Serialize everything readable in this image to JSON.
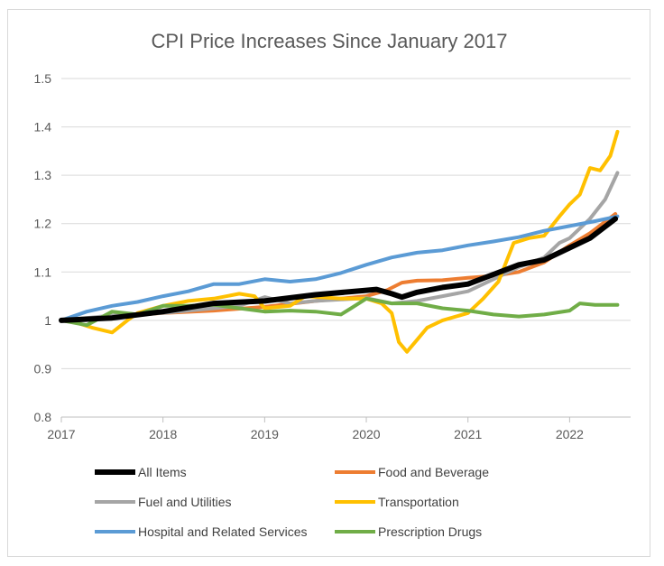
{
  "chart_data": {
    "type": "line",
    "title": "CPI Price Increases Since January 2017",
    "xlabel": "",
    "ylabel": "",
    "xlim": [
      2017,
      2022.6
    ],
    "ylim": [
      0.8,
      1.5
    ],
    "x_ticks": [
      2017,
      2018,
      2019,
      2020,
      2021,
      2022
    ],
    "x_tick_labels": [
      "2017",
      "2018",
      "2019",
      "2020",
      "2021",
      "2022"
    ],
    "y_ticks": [
      0.8,
      0.9,
      1.0,
      1.1,
      1.2,
      1.3,
      1.4,
      1.5
    ],
    "y_tick_labels": [
      "0.8",
      "0.9",
      "1",
      "1.1",
      "1.2",
      "1.3",
      "1.4",
      "1.5"
    ],
    "grid": true,
    "legend_position": "bottom",
    "series": [
      {
        "name": "All Items",
        "color": "#000000",
        "points": [
          [
            2017,
            1.0
          ],
          [
            2017.5,
            1.005
          ],
          [
            2018,
            1.018
          ],
          [
            2018.5,
            1.035
          ],
          [
            2019,
            1.04
          ],
          [
            2019.5,
            1.053
          ],
          [
            2020,
            1.062
          ],
          [
            2020.1,
            1.064
          ],
          [
            2020.25,
            1.055
          ],
          [
            2020.35,
            1.048
          ],
          [
            2020.5,
            1.058
          ],
          [
            2020.75,
            1.068
          ],
          [
            2021,
            1.075
          ],
          [
            2021.25,
            1.095
          ],
          [
            2021.5,
            1.115
          ],
          [
            2021.75,
            1.125
          ],
          [
            2022,
            1.15
          ],
          [
            2022.2,
            1.17
          ],
          [
            2022.45,
            1.21
          ]
        ]
      },
      {
        "name": "Food and Beverage",
        "color": "#ed7d31",
        "points": [
          [
            2017,
            1.0
          ],
          [
            2017.5,
            1.008
          ],
          [
            2018,
            1.015
          ],
          [
            2018.5,
            1.02
          ],
          [
            2019,
            1.028
          ],
          [
            2019.5,
            1.04
          ],
          [
            2020,
            1.05
          ],
          [
            2020.2,
            1.062
          ],
          [
            2020.35,
            1.078
          ],
          [
            2020.5,
            1.082
          ],
          [
            2020.75,
            1.083
          ],
          [
            2021,
            1.088
          ],
          [
            2021.25,
            1.092
          ],
          [
            2021.5,
            1.1
          ],
          [
            2021.75,
            1.12
          ],
          [
            2022,
            1.155
          ],
          [
            2022.2,
            1.18
          ],
          [
            2022.45,
            1.22
          ]
        ]
      },
      {
        "name": "Fuel and Utilities",
        "color": "#a5a5a5",
        "points": [
          [
            2017,
            1.0
          ],
          [
            2017.5,
            1.01
          ],
          [
            2018,
            1.015
          ],
          [
            2018.5,
            1.025
          ],
          [
            2018.75,
            1.03
          ],
          [
            2019,
            1.048
          ],
          [
            2019.25,
            1.035
          ],
          [
            2019.5,
            1.04
          ],
          [
            2019.75,
            1.043
          ],
          [
            2020,
            1.046
          ],
          [
            2020.25,
            1.035
          ],
          [
            2020.5,
            1.04
          ],
          [
            2020.75,
            1.05
          ],
          [
            2021,
            1.06
          ],
          [
            2021.25,
            1.085
          ],
          [
            2021.5,
            1.11
          ],
          [
            2021.75,
            1.13
          ],
          [
            2021.9,
            1.16
          ],
          [
            2022,
            1.17
          ],
          [
            2022.2,
            1.21
          ],
          [
            2022.35,
            1.25
          ],
          [
            2022.47,
            1.305
          ]
        ]
      },
      {
        "name": "Transportation",
        "color": "#ffc000",
        "points": [
          [
            2017,
            1.0
          ],
          [
            2017.15,
            0.995
          ],
          [
            2017.3,
            0.985
          ],
          [
            2017.5,
            0.975
          ],
          [
            2017.65,
            1.0
          ],
          [
            2017.75,
            1.015
          ],
          [
            2018,
            1.03
          ],
          [
            2018.25,
            1.04
          ],
          [
            2018.5,
            1.045
          ],
          [
            2018.75,
            1.055
          ],
          [
            2018.9,
            1.05
          ],
          [
            2019,
            1.025
          ],
          [
            2019.25,
            1.03
          ],
          [
            2019.4,
            1.05
          ],
          [
            2019.75,
            1.045
          ],
          [
            2020,
            1.045
          ],
          [
            2020.15,
            1.035
          ],
          [
            2020.25,
            1.015
          ],
          [
            2020.32,
            0.955
          ],
          [
            2020.4,
            0.935
          ],
          [
            2020.5,
            0.96
          ],
          [
            2020.6,
            0.985
          ],
          [
            2020.75,
            1.0
          ],
          [
            2021,
            1.015
          ],
          [
            2021.15,
            1.045
          ],
          [
            2021.3,
            1.08
          ],
          [
            2021.45,
            1.16
          ],
          [
            2021.6,
            1.17
          ],
          [
            2021.75,
            1.175
          ],
          [
            2021.9,
            1.215
          ],
          [
            2022,
            1.24
          ],
          [
            2022.1,
            1.26
          ],
          [
            2022.2,
            1.315
          ],
          [
            2022.3,
            1.31
          ],
          [
            2022.4,
            1.34
          ],
          [
            2022.47,
            1.39
          ]
        ]
      },
      {
        "name": "Hospital and Related Services",
        "color": "#5b9bd5",
        "points": [
          [
            2017,
            1.0
          ],
          [
            2017.25,
            1.018
          ],
          [
            2017.5,
            1.03
          ],
          [
            2017.75,
            1.038
          ],
          [
            2018,
            1.05
          ],
          [
            2018.25,
            1.06
          ],
          [
            2018.5,
            1.075
          ],
          [
            2018.75,
            1.075
          ],
          [
            2019,
            1.085
          ],
          [
            2019.25,
            1.08
          ],
          [
            2019.5,
            1.085
          ],
          [
            2019.75,
            1.098
          ],
          [
            2020,
            1.115
          ],
          [
            2020.25,
            1.13
          ],
          [
            2020.5,
            1.14
          ],
          [
            2020.75,
            1.145
          ],
          [
            2021,
            1.155
          ],
          [
            2021.25,
            1.163
          ],
          [
            2021.5,
            1.172
          ],
          [
            2021.75,
            1.185
          ],
          [
            2022,
            1.195
          ],
          [
            2022.25,
            1.205
          ],
          [
            2022.47,
            1.215
          ]
        ]
      },
      {
        "name": "Prescription Drugs",
        "color": "#70ad47",
        "points": [
          [
            2017,
            1.0
          ],
          [
            2017.25,
            0.99
          ],
          [
            2017.5,
            1.018
          ],
          [
            2017.75,
            1.012
          ],
          [
            2018,
            1.03
          ],
          [
            2018.25,
            1.03
          ],
          [
            2018.5,
            1.032
          ],
          [
            2018.75,
            1.025
          ],
          [
            2019,
            1.018
          ],
          [
            2019.25,
            1.02
          ],
          [
            2019.5,
            1.018
          ],
          [
            2019.75,
            1.012
          ],
          [
            2019.85,
            1.025
          ],
          [
            2020,
            1.045
          ],
          [
            2020.25,
            1.035
          ],
          [
            2020.5,
            1.035
          ],
          [
            2020.75,
            1.025
          ],
          [
            2021,
            1.02
          ],
          [
            2021.25,
            1.012
          ],
          [
            2021.5,
            1.008
          ],
          [
            2021.75,
            1.012
          ],
          [
            2022,
            1.02
          ],
          [
            2022.1,
            1.035
          ],
          [
            2022.25,
            1.032
          ],
          [
            2022.47,
            1.032
          ]
        ]
      }
    ]
  }
}
